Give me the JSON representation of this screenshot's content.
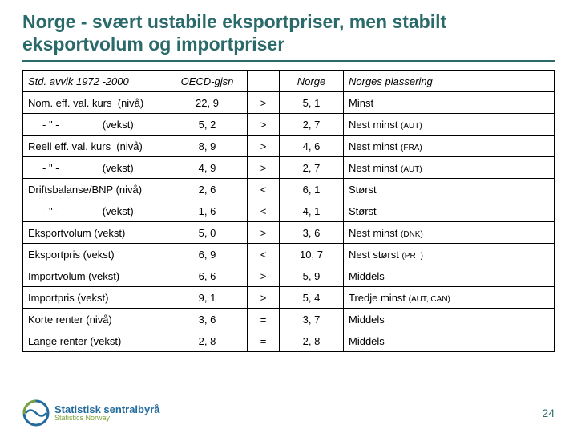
{
  "title": "Norge - svært ustabile eksportpriser, men stabilt eksportvolum og importpriser",
  "page_number": "24",
  "logo": {
    "main": "Statistisk sentralbyrå",
    "sub": "Statistics Norway"
  },
  "table": {
    "columns": [
      "Std. avvik 1972 -2000",
      "OECD-gjsn",
      "",
      "Norge",
      "Norges plassering"
    ],
    "rows": [
      {
        "label": "Nom. eff. val. kurs  (nivå)",
        "oecd": "22, 9",
        "cmp": ">",
        "norge": "5, 1",
        "place": "Minst",
        "smallnote": ""
      },
      {
        "label": "     - \" -               (vekst)",
        "oecd": "5, 2",
        "cmp": ">",
        "norge": "2, 7",
        "place": "Nest minst ",
        "smallnote": "(AUT)"
      },
      {
        "label": "Reell eff. val. kurs  (nivå)",
        "oecd": "8, 9",
        "cmp": ">",
        "norge": "4, 6",
        "place": "Nest minst ",
        "smallnote": "(FRA)"
      },
      {
        "label": "     - \" -               (vekst)",
        "oecd": "4, 9",
        "cmp": ">",
        "norge": "2, 7",
        "place": "Nest minst ",
        "smallnote": "(AUT)"
      },
      {
        "label": "Driftsbalanse/BNP (nivå)",
        "oecd": "2, 6",
        "cmp": "<",
        "norge": "6, 1",
        "place": "Størst",
        "smallnote": ""
      },
      {
        "label": "     - \" -               (vekst)",
        "oecd": "1, 6",
        "cmp": "<",
        "norge": "4, 1",
        "place": "Størst",
        "smallnote": ""
      },
      {
        "label": "Eksportvolum (vekst)",
        "oecd": "5, 0",
        "cmp": ">",
        "norge": "3, 6",
        "place": "Nest minst ",
        "smallnote": "(DNK)"
      },
      {
        "label": "Eksportpris (vekst)",
        "oecd": "6, 9",
        "cmp": "<",
        "norge": "10, 7",
        "place": "Nest størst ",
        "smallnote": "(PRT)"
      },
      {
        "label": "Importvolum (vekst)",
        "oecd": "6, 6",
        "cmp": ">",
        "norge": "5, 9",
        "place": "Middels",
        "smallnote": ""
      },
      {
        "label": "Importpris (vekst)",
        "oecd": "9, 1",
        "cmp": ">",
        "norge": "5, 4",
        "place": "Tredje minst ",
        "smallnote": "(AUT, CAN)"
      },
      {
        "label": "Korte renter (nivå)",
        "oecd": "3, 6",
        "cmp": "=",
        "norge": "3, 7",
        "place": "Middels",
        "smallnote": ""
      },
      {
        "label": "Lange renter (vekst)",
        "oecd": "2, 8",
        "cmp": "=",
        "norge": "2, 8",
        "place": "Middels",
        "smallnote": ""
      }
    ]
  },
  "colors": {
    "heading": "#2a6a6a",
    "border": "#000000",
    "logo_blue": "#236b9c",
    "logo_green": "#7aa23b"
  }
}
